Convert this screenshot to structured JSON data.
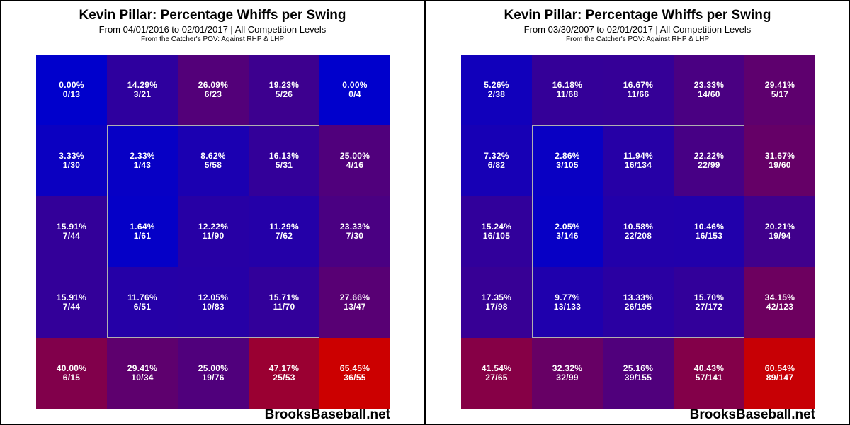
{
  "chart_data": [
    {
      "type": "heatmap",
      "title": "Kevin Pillar: Percentage Whiffs per Swing",
      "subtitle": "From 04/01/2016 to 02/01/2017 | All Competition Levels",
      "caption": "From the Catcher's POV:  Against RHP & LHP",
      "watermark": "BrooksBaseball.net",
      "rows": [
        [
          {
            "pct": "0.00%",
            "frac": "0/13",
            "v": 0.0
          },
          {
            "pct": "14.29%",
            "frac": "3/21",
            "v": 14.29
          },
          {
            "pct": "26.09%",
            "frac": "6/23",
            "v": 26.09
          },
          {
            "pct": "19.23%",
            "frac": "5/26",
            "v": 19.23
          },
          {
            "pct": "0.00%",
            "frac": "0/4",
            "v": 0.0
          }
        ],
        [
          {
            "pct": "3.33%",
            "frac": "1/30",
            "v": 3.33
          },
          {
            "pct": "2.33%",
            "frac": "1/43",
            "v": 2.33
          },
          {
            "pct": "8.62%",
            "frac": "5/58",
            "v": 8.62
          },
          {
            "pct": "16.13%",
            "frac": "5/31",
            "v": 16.13
          },
          {
            "pct": "25.00%",
            "frac": "4/16",
            "v": 25.0
          }
        ],
        [
          {
            "pct": "15.91%",
            "frac": "7/44",
            "v": 15.91
          },
          {
            "pct": "1.64%",
            "frac": "1/61",
            "v": 1.64
          },
          {
            "pct": "12.22%",
            "frac": "11/90",
            "v": 12.22
          },
          {
            "pct": "11.29%",
            "frac": "7/62",
            "v": 11.29
          },
          {
            "pct": "23.33%",
            "frac": "7/30",
            "v": 23.33
          }
        ],
        [
          {
            "pct": "15.91%",
            "frac": "7/44",
            "v": 15.91
          },
          {
            "pct": "11.76%",
            "frac": "6/51",
            "v": 11.76
          },
          {
            "pct": "12.05%",
            "frac": "10/83",
            "v": 12.05
          },
          {
            "pct": "15.71%",
            "frac": "11/70",
            "v": 15.71
          },
          {
            "pct": "27.66%",
            "frac": "13/47",
            "v": 27.66
          }
        ],
        [
          {
            "pct": "40.00%",
            "frac": "6/15",
            "v": 40.0
          },
          {
            "pct": "29.41%",
            "frac": "10/34",
            "v": 29.41
          },
          {
            "pct": "25.00%",
            "frac": "19/76",
            "v": 25.0
          },
          {
            "pct": "47.17%",
            "frac": "25/53",
            "v": 47.17
          },
          {
            "pct": "65.45%",
            "frac": "36/55",
            "v": 65.45
          }
        ]
      ]
    },
    {
      "type": "heatmap",
      "title": "Kevin Pillar: Percentage Whiffs per Swing",
      "subtitle": "From 03/30/2007 to 02/01/2017 | All Competition Levels",
      "caption": "From the Catcher's POV:  Against RHP & LHP",
      "watermark": "BrooksBaseball.net",
      "rows": [
        [
          {
            "pct": "5.26%",
            "frac": "2/38",
            "v": 5.26
          },
          {
            "pct": "16.18%",
            "frac": "11/68",
            "v": 16.18
          },
          {
            "pct": "16.67%",
            "frac": "11/66",
            "v": 16.67
          },
          {
            "pct": "23.33%",
            "frac": "14/60",
            "v": 23.33
          },
          {
            "pct": "29.41%",
            "frac": "5/17",
            "v": 29.41
          }
        ],
        [
          {
            "pct": "7.32%",
            "frac": "6/82",
            "v": 7.32
          },
          {
            "pct": "2.86%",
            "frac": "3/105",
            "v": 2.86
          },
          {
            "pct": "11.94%",
            "frac": "16/134",
            "v": 11.94
          },
          {
            "pct": "22.22%",
            "frac": "22/99",
            "v": 22.22
          },
          {
            "pct": "31.67%",
            "frac": "19/60",
            "v": 31.67
          }
        ],
        [
          {
            "pct": "15.24%",
            "frac": "16/105",
            "v": 15.24
          },
          {
            "pct": "2.05%",
            "frac": "3/146",
            "v": 2.05
          },
          {
            "pct": "10.58%",
            "frac": "22/208",
            "v": 10.58
          },
          {
            "pct": "10.46%",
            "frac": "16/153",
            "v": 10.46
          },
          {
            "pct": "20.21%",
            "frac": "19/94",
            "v": 20.21
          }
        ],
        [
          {
            "pct": "17.35%",
            "frac": "17/98",
            "v": 17.35
          },
          {
            "pct": "9.77%",
            "frac": "13/133",
            "v": 9.77
          },
          {
            "pct": "13.33%",
            "frac": "26/195",
            "v": 13.33
          },
          {
            "pct": "15.70%",
            "frac": "27/172",
            "v": 15.7
          },
          {
            "pct": "34.15%",
            "frac": "42/123",
            "v": 34.15
          }
        ],
        [
          {
            "pct": "41.54%",
            "frac": "27/65",
            "v": 41.54
          },
          {
            "pct": "32.32%",
            "frac": "32/99",
            "v": 32.32
          },
          {
            "pct": "25.16%",
            "frac": "39/155",
            "v": 25.16
          },
          {
            "pct": "40.43%",
            "frac": "57/141",
            "v": 40.43
          },
          {
            "pct": "60.54%",
            "frac": "89/147",
            "v": 60.54
          }
        ]
      ]
    }
  ],
  "colors": {
    "low": "#0000cc",
    "mid": "#660066",
    "high": "#cc0000"
  }
}
